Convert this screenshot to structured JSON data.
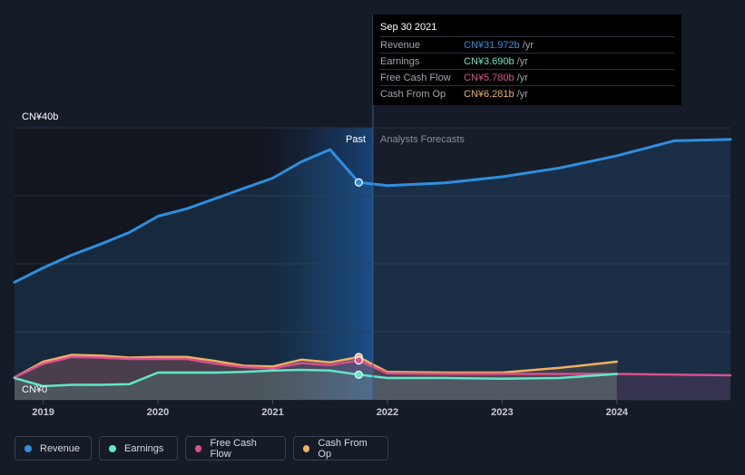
{
  "tooltip": {
    "date": "Sep 30 2021",
    "rows": [
      {
        "label": "Revenue",
        "value": "CN¥31.972b",
        "unit": "/yr",
        "color": "#2e8fe0"
      },
      {
        "label": "Earnings",
        "value": "CN¥3.690b",
        "unit": "/yr",
        "color": "#5ee8c8"
      },
      {
        "label": "Free Cash Flow",
        "value": "CN¥5.780b",
        "unit": "/yr",
        "color": "#d9508c"
      },
      {
        "label": "Cash From Op",
        "value": "CN¥6.281b",
        "unit": "/yr",
        "color": "#f0b060"
      }
    ]
  },
  "annotations": {
    "past": "Past",
    "forecast": "Analysts Forecasts"
  },
  "legend": [
    {
      "label": "Revenue",
      "color": "#2e8fe0"
    },
    {
      "label": "Earnings",
      "color": "#5ee8c8"
    },
    {
      "label": "Free Cash Flow",
      "color": "#d9508c"
    },
    {
      "label": "Cash From Op",
      "color": "#f0b060"
    }
  ],
  "chart_data": {
    "type": "line",
    "title": "",
    "y_unit": "CN¥b",
    "ylim": [
      0,
      40
    ],
    "y_tick_labels": [
      {
        "value": 40,
        "label": "CN¥40b"
      },
      {
        "value": 0,
        "label": "CN¥0"
      }
    ],
    "xlim": [
      2018.75,
      2024.99
    ],
    "x_ticks": [
      2019,
      2020,
      2021,
      2022,
      2023,
      2024
    ],
    "x_tick_labels": [
      "2019",
      "2020",
      "2021",
      "2022",
      "2023",
      "2024"
    ],
    "past_end": 2021.75,
    "series": [
      {
        "name": "Revenue",
        "color": "#2e8fe0",
        "area": true,
        "x": [
          2018.75,
          2019.0,
          2019.25,
          2019.5,
          2019.75,
          2020.0,
          2020.25,
          2020.5,
          2020.75,
          2021.0,
          2021.25,
          2021.5,
          2021.75,
          2022.0,
          2022.5,
          2023.0,
          2023.5,
          2024.0,
          2024.5,
          2024.99
        ],
        "y": [
          17.3,
          19.4,
          21.3,
          22.9,
          24.6,
          27.0,
          28.1,
          29.6,
          31.1,
          32.6,
          35.0,
          36.8,
          31.97,
          31.5,
          31.9,
          32.8,
          34.1,
          35.9,
          38.1,
          38.3
        ]
      },
      {
        "name": "Cash From Op",
        "color": "#f0b060",
        "area": true,
        "x": [
          2018.75,
          2019.0,
          2019.25,
          2019.5,
          2019.75,
          2020.0,
          2020.25,
          2020.5,
          2020.75,
          2021.0,
          2021.25,
          2021.5,
          2021.75,
          2022.0,
          2022.5,
          2023.0,
          2023.5,
          2024.0
        ],
        "y": [
          3.3,
          5.6,
          6.6,
          6.5,
          6.2,
          6.3,
          6.3,
          5.7,
          5.0,
          4.9,
          5.9,
          5.5,
          6.28,
          4.1,
          4.0,
          4.0,
          4.7,
          5.6
        ]
      },
      {
        "name": "Free Cash Flow",
        "color": "#d9508c",
        "area": true,
        "x": [
          2018.75,
          2019.0,
          2019.25,
          2019.5,
          2019.75,
          2020.0,
          2020.25,
          2020.5,
          2020.75,
          2021.0,
          2021.25,
          2021.5,
          2021.75,
          2022.0,
          2022.5,
          2023.0,
          2023.5,
          2024.0,
          2024.5,
          2024.99
        ],
        "y": [
          3.3,
          5.3,
          6.3,
          6.2,
          6.0,
          6.0,
          6.0,
          5.3,
          4.8,
          4.6,
          5.4,
          5.1,
          5.78,
          3.9,
          3.8,
          3.8,
          3.8,
          3.8,
          3.7,
          3.6
        ]
      },
      {
        "name": "Earnings",
        "color": "#5ee8c8",
        "area": true,
        "x": [
          2018.75,
          2019.0,
          2019.25,
          2019.5,
          2019.75,
          2020.0,
          2020.25,
          2020.5,
          2020.75,
          2021.0,
          2021.25,
          2021.5,
          2021.75,
          2022.0,
          2022.5,
          2023.0,
          2023.5,
          2024.0
        ],
        "y": [
          3.2,
          2.0,
          2.2,
          2.2,
          2.3,
          4.0,
          4.0,
          4.0,
          4.1,
          4.3,
          4.4,
          4.3,
          3.69,
          3.2,
          3.2,
          3.1,
          3.2,
          3.8
        ]
      }
    ]
  }
}
